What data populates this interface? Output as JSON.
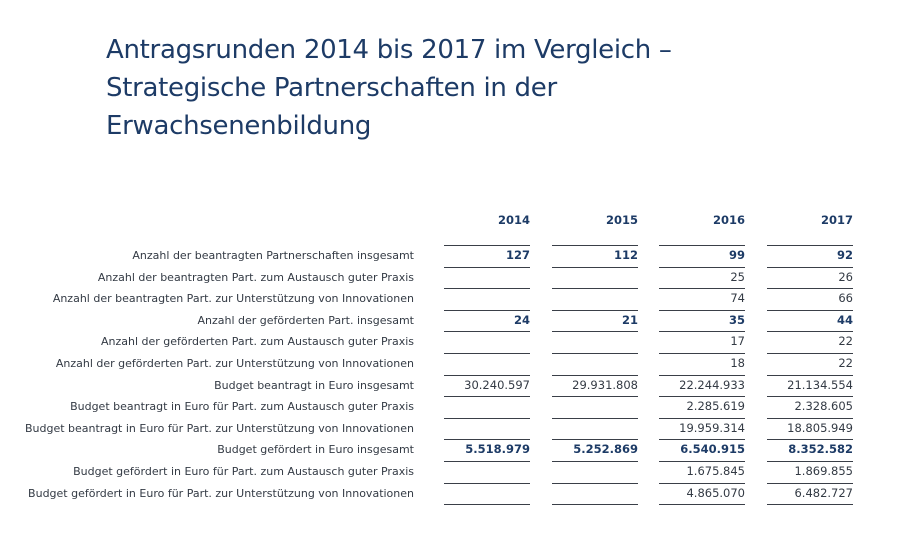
{
  "title_lines": [
    "Antragsrunden 2014 bis 2017 im Vergleich –",
    "Strategische Partnerschaften in der",
    "Erwachsenenbildung"
  ],
  "columns": [
    "2014",
    "2015",
    "2016",
    "2017"
  ],
  "rows": [
    {
      "label": "Anzahl der beantragten Partnerschaften insgesamt",
      "bold": true,
      "values": [
        "127",
        "112",
        "99",
        "92"
      ]
    },
    {
      "label": "Anzahl der beantragten Part. zum Austausch guter Praxis",
      "bold": false,
      "values": [
        "",
        "",
        "25",
        "26"
      ]
    },
    {
      "label": "Anzahl der beantragten Part. zur Unterstützung von Innovationen",
      "bold": false,
      "values": [
        "",
        "",
        "74",
        "66"
      ]
    },
    {
      "label": "Anzahl der geförderten Part. insgesamt",
      "bold": true,
      "values": [
        "24",
        "21",
        "35",
        "44"
      ]
    },
    {
      "label": "Anzahl der geförderten Part. zum Austausch guter Praxis",
      "bold": false,
      "values": [
        "",
        "",
        "17",
        "22"
      ]
    },
    {
      "label": "Anzahl der geförderten Part. zur Unterstützung von Innovationen",
      "bold": false,
      "values": [
        "",
        "",
        "18",
        "22"
      ]
    },
    {
      "label": "Budget beantragt in Euro insgesamt",
      "bold": false,
      "values": [
        "30.240.597",
        "29.931.808",
        "22.244.933",
        "21.134.554"
      ]
    },
    {
      "label": "Budget beantragt in Euro für Part. zum Austausch guter Praxis",
      "bold": false,
      "values": [
        "",
        "",
        "2.285.619",
        "2.328.605"
      ]
    },
    {
      "label": "Budget beantragt in Euro für Part. zur Unterstützung von Innovationen",
      "bold": false,
      "values": [
        "",
        "",
        "19.959.314",
        "18.805.949"
      ]
    },
    {
      "label": "Budget gefördert in Euro insgesamt",
      "bold": true,
      "values": [
        "5.518.979",
        "5.252.869",
        "6.540.915",
        "8.352.582"
      ]
    },
    {
      "label": "Budget gefördert in Euro für Part. zum Austausch guter Praxis",
      "bold": false,
      "values": [
        "",
        "",
        "1.675.845",
        "1.869.855"
      ]
    },
    {
      "label": "Budget gefördert in Euro für Part. zur Unterstützung von Innovationen",
      "bold": false,
      "values": [
        "",
        "",
        "4.865.070",
        "6.482.727"
      ]
    }
  ],
  "colors": {
    "title": "#1d3b66",
    "text": "#333a44",
    "rule": "#3a3f48"
  }
}
